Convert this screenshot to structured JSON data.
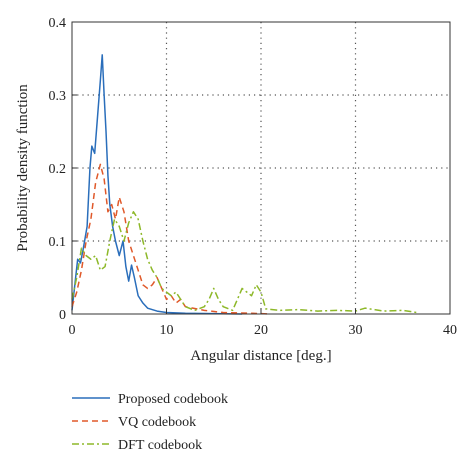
{
  "chart_data": {
    "type": "line",
    "title": "",
    "xlabel": "Angular distance [deg.]",
    "ylabel": "Probability density function",
    "xlim": [
      0,
      40
    ],
    "ylim": [
      0,
      0.4
    ],
    "xticks": [
      0,
      10,
      20,
      30,
      40
    ],
    "yticks": [
      0,
      0.1,
      0.2,
      0.3,
      0.4
    ],
    "xtick_labels": [
      "0",
      "10",
      "20",
      "30",
      "40"
    ],
    "ytick_labels": [
      "0",
      "0.1",
      "0.2",
      "0.3",
      "0.4"
    ],
    "grid": "dotted",
    "legend_position": "below",
    "series": [
      {
        "name": "Proposed codebook",
        "color": "#2a6ebb",
        "style": "solid",
        "points": [
          [
            0,
            0.005
          ],
          [
            0.3,
            0.04
          ],
          [
            0.6,
            0.075
          ],
          [
            0.9,
            0.07
          ],
          [
            1.2,
            0.09
          ],
          [
            1.6,
            0.12
          ],
          [
            1.9,
            0.2
          ],
          [
            2.1,
            0.23
          ],
          [
            2.4,
            0.22
          ],
          [
            2.7,
            0.27
          ],
          [
            3.0,
            0.32
          ],
          [
            3.2,
            0.355
          ],
          [
            3.4,
            0.3
          ],
          [
            3.6,
            0.25
          ],
          [
            3.8,
            0.19
          ],
          [
            4.0,
            0.15
          ],
          [
            4.3,
            0.12
          ],
          [
            4.6,
            0.1
          ],
          [
            5.0,
            0.08
          ],
          [
            5.4,
            0.1
          ],
          [
            5.7,
            0.065
          ],
          [
            6.0,
            0.045
          ],
          [
            6.3,
            0.067
          ],
          [
            6.6,
            0.05
          ],
          [
            7.0,
            0.025
          ],
          [
            7.5,
            0.015
          ],
          [
            8.0,
            0.008
          ],
          [
            9.0,
            0.004
          ],
          [
            10,
            0.002
          ],
          [
            12,
            0.001
          ],
          [
            15,
            0.0005
          ],
          [
            18,
            0
          ]
        ]
      },
      {
        "name": "VQ codebook",
        "color": "#e0592a",
        "style": "dashed",
        "points": [
          [
            0,
            0.01
          ],
          [
            0.5,
            0.03
          ],
          [
            1.0,
            0.06
          ],
          [
            1.5,
            0.1
          ],
          [
            2.0,
            0.13
          ],
          [
            2.5,
            0.18
          ],
          [
            3.0,
            0.205
          ],
          [
            3.4,
            0.185
          ],
          [
            3.8,
            0.14
          ],
          [
            4.2,
            0.15
          ],
          [
            4.6,
            0.13
          ],
          [
            5.0,
            0.16
          ],
          [
            5.5,
            0.14
          ],
          [
            6.0,
            0.1
          ],
          [
            6.5,
            0.08
          ],
          [
            7.0,
            0.06
          ],
          [
            7.5,
            0.04
          ],
          [
            8.0,
            0.035
          ],
          [
            8.5,
            0.04
          ],
          [
            9.0,
            0.05
          ],
          [
            9.5,
            0.035
          ],
          [
            10,
            0.02
          ],
          [
            10.5,
            0.025
          ],
          [
            11,
            0.015
          ],
          [
            11.5,
            0.02
          ],
          [
            12,
            0.01
          ],
          [
            14,
            0.005
          ],
          [
            16,
            0.002
          ],
          [
            19,
            0.001
          ],
          [
            21,
            0
          ]
        ]
      },
      {
        "name": "DFT codebook",
        "color": "#8db828",
        "style": "dashdot",
        "points": [
          [
            0,
            0.02
          ],
          [
            0.5,
            0.05
          ],
          [
            1.0,
            0.09
          ],
          [
            1.5,
            0.08
          ],
          [
            2.0,
            0.075
          ],
          [
            2.5,
            0.08
          ],
          [
            3.0,
            0.06
          ],
          [
            3.5,
            0.065
          ],
          [
            4.0,
            0.1
          ],
          [
            4.5,
            0.13
          ],
          [
            5.0,
            0.12
          ],
          [
            5.5,
            0.1
          ],
          [
            6.0,
            0.125
          ],
          [
            6.5,
            0.14
          ],
          [
            7.0,
            0.13
          ],
          [
            7.5,
            0.1
          ],
          [
            8.0,
            0.075
          ],
          [
            8.5,
            0.06
          ],
          [
            9.0,
            0.05
          ],
          [
            9.5,
            0.035
          ],
          [
            10,
            0.03
          ],
          [
            10.5,
            0.025
          ],
          [
            11,
            0.03
          ],
          [
            11.5,
            0.02
          ],
          [
            12,
            0.01
          ],
          [
            13,
            0.005
          ],
          [
            14,
            0.01
          ],
          [
            14.5,
            0.02
          ],
          [
            15,
            0.035
          ],
          [
            15.5,
            0.02
          ],
          [
            16,
            0.01
          ],
          [
            17,
            0.005
          ],
          [
            17.5,
            0.02
          ],
          [
            18,
            0.035
          ],
          [
            18.5,
            0.03
          ],
          [
            19,
            0.025
          ],
          [
            19.5,
            0.04
          ],
          [
            20,
            0.03
          ],
          [
            20.5,
            0.007
          ],
          [
            22,
            0.005
          ],
          [
            24,
            0.006
          ],
          [
            26,
            0.004
          ],
          [
            28,
            0.005
          ],
          [
            30,
            0.004
          ],
          [
            31,
            0.008
          ],
          [
            33,
            0.004
          ],
          [
            35,
            0.005
          ],
          [
            36.5,
            0.002
          ]
        ]
      }
    ]
  }
}
